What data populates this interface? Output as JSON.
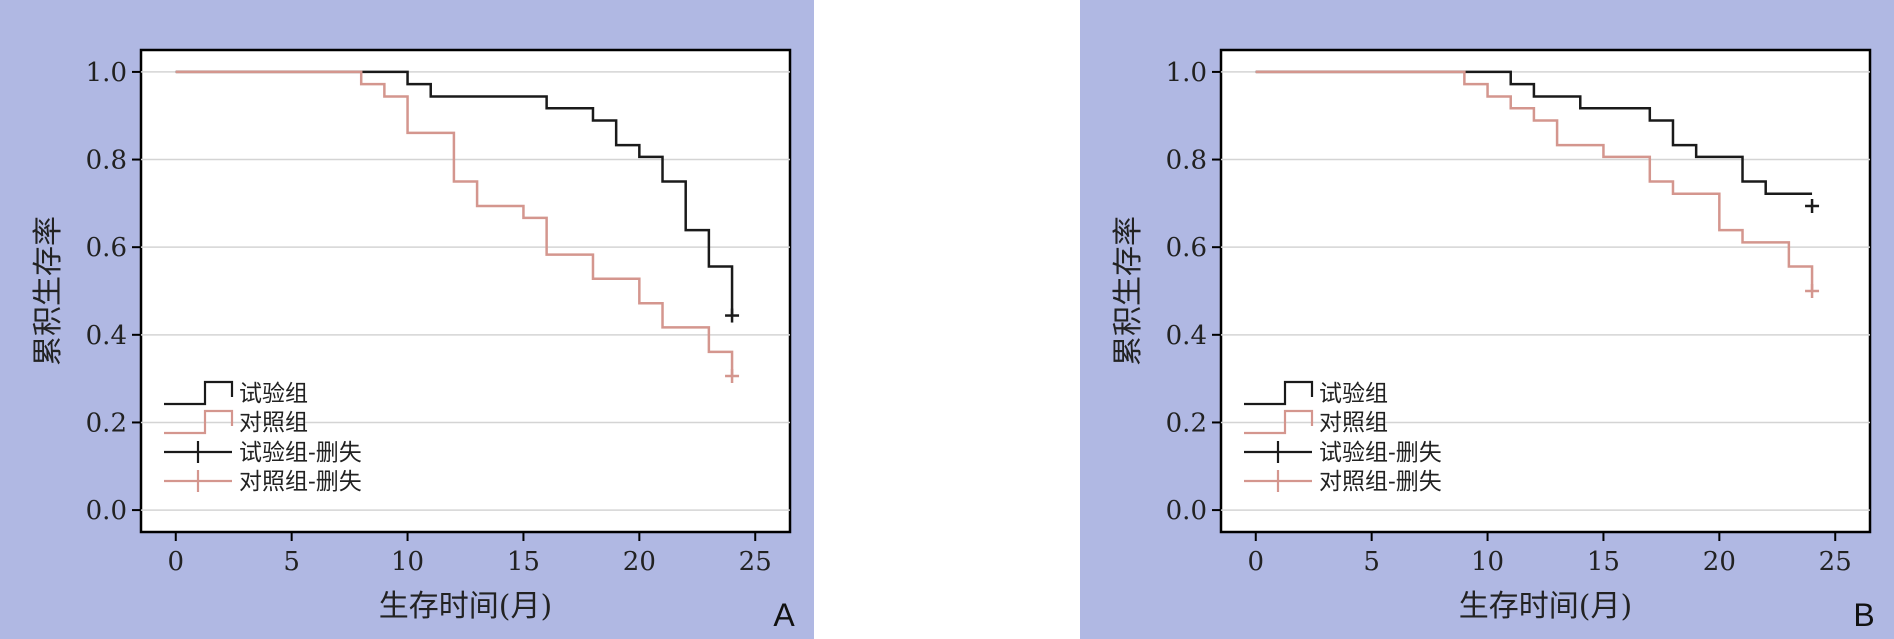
{
  "panels": [
    {
      "panel_label": "A",
      "chart_data": {
        "type": "line",
        "xlabel": "生存时间(月)",
        "ylabel": "累积生存率",
        "xlim": [
          -1.5,
          26.5
        ],
        "ylim": [
          -0.05,
          1.05
        ],
        "xticks": [
          0,
          5,
          10,
          15,
          20,
          25
        ],
        "yticks": [
          0.0,
          0.2,
          0.4,
          0.6,
          0.8,
          1.0
        ],
        "grid": "horizontal",
        "legend": {
          "placement": "bottom-left",
          "entries": [
            "试验组",
            "对照组",
            "试验组-删失",
            "对照组-删失"
          ]
        },
        "series": [
          {
            "name": "试验组",
            "color": "#1a1a1a",
            "step_points": [
              [
                0,
                1.0
              ],
              [
                10,
                0.972
              ],
              [
                11,
                0.944
              ],
              [
                16,
                0.917
              ],
              [
                18,
                0.889
              ],
              [
                19,
                0.833
              ],
              [
                20,
                0.806
              ],
              [
                21,
                0.75
              ],
              [
                22,
                0.639
              ],
              [
                23,
                0.556
              ],
              [
                24,
                0.444
              ]
            ],
            "censored": [
              [
                24,
                0.444
              ]
            ]
          },
          {
            "name": "对照组",
            "color": "#d4968e",
            "step_points": [
              [
                0,
                1.0
              ],
              [
                8,
                0.972
              ],
              [
                9,
                0.944
              ],
              [
                10,
                0.861
              ],
              [
                12,
                0.75
              ],
              [
                13,
                0.694
              ],
              [
                15,
                0.667
              ],
              [
                16,
                0.583
              ],
              [
                18,
                0.528
              ],
              [
                20,
                0.472
              ],
              [
                21,
                0.417
              ],
              [
                23,
                0.361
              ],
              [
                24,
                0.306
              ]
            ],
            "censored": [
              [
                24,
                0.306
              ]
            ]
          }
        ]
      }
    },
    {
      "panel_label": "B",
      "chart_data": {
        "type": "line",
        "xlabel": "生存时间(月)",
        "ylabel": "累积生存率",
        "xlim": [
          -1.5,
          26.5
        ],
        "ylim": [
          -0.05,
          1.05
        ],
        "xticks": [
          0,
          5,
          10,
          15,
          20,
          25
        ],
        "yticks": [
          0.0,
          0.2,
          0.4,
          0.6,
          0.8,
          1.0
        ],
        "grid": "horizontal",
        "legend": {
          "placement": "bottom-left",
          "entries": [
            "试验组",
            "对照组",
            "试验组-删失",
            "对照组-删失"
          ]
        },
        "series": [
          {
            "name": "试验组",
            "color": "#1a1a1a",
            "step_points": [
              [
                0,
                1.0
              ],
              [
                11,
                0.972
              ],
              [
                12,
                0.944
              ],
              [
                14,
                0.917
              ],
              [
                17,
                0.889
              ],
              [
                18,
                0.833
              ],
              [
                19,
                0.806
              ],
              [
                21,
                0.75
              ],
              [
                22,
                0.722
              ]
            ],
            "censored": [
              [
                24,
                0.694
              ]
            ]
          },
          {
            "name": "对照组",
            "color": "#d4968e",
            "step_points": [
              [
                0,
                1.0
              ],
              [
                9,
                0.972
              ],
              [
                10,
                0.944
              ],
              [
                11,
                0.917
              ],
              [
                12,
                0.889
              ],
              [
                13,
                0.833
              ],
              [
                15,
                0.806
              ],
              [
                17,
                0.75
              ],
              [
                18,
                0.722
              ],
              [
                20,
                0.639
              ],
              [
                21,
                0.611
              ],
              [
                23,
                0.556
              ],
              [
                24,
                0.5
              ]
            ],
            "censored": [
              [
                24,
                0.5
              ]
            ]
          }
        ]
      }
    }
  ]
}
